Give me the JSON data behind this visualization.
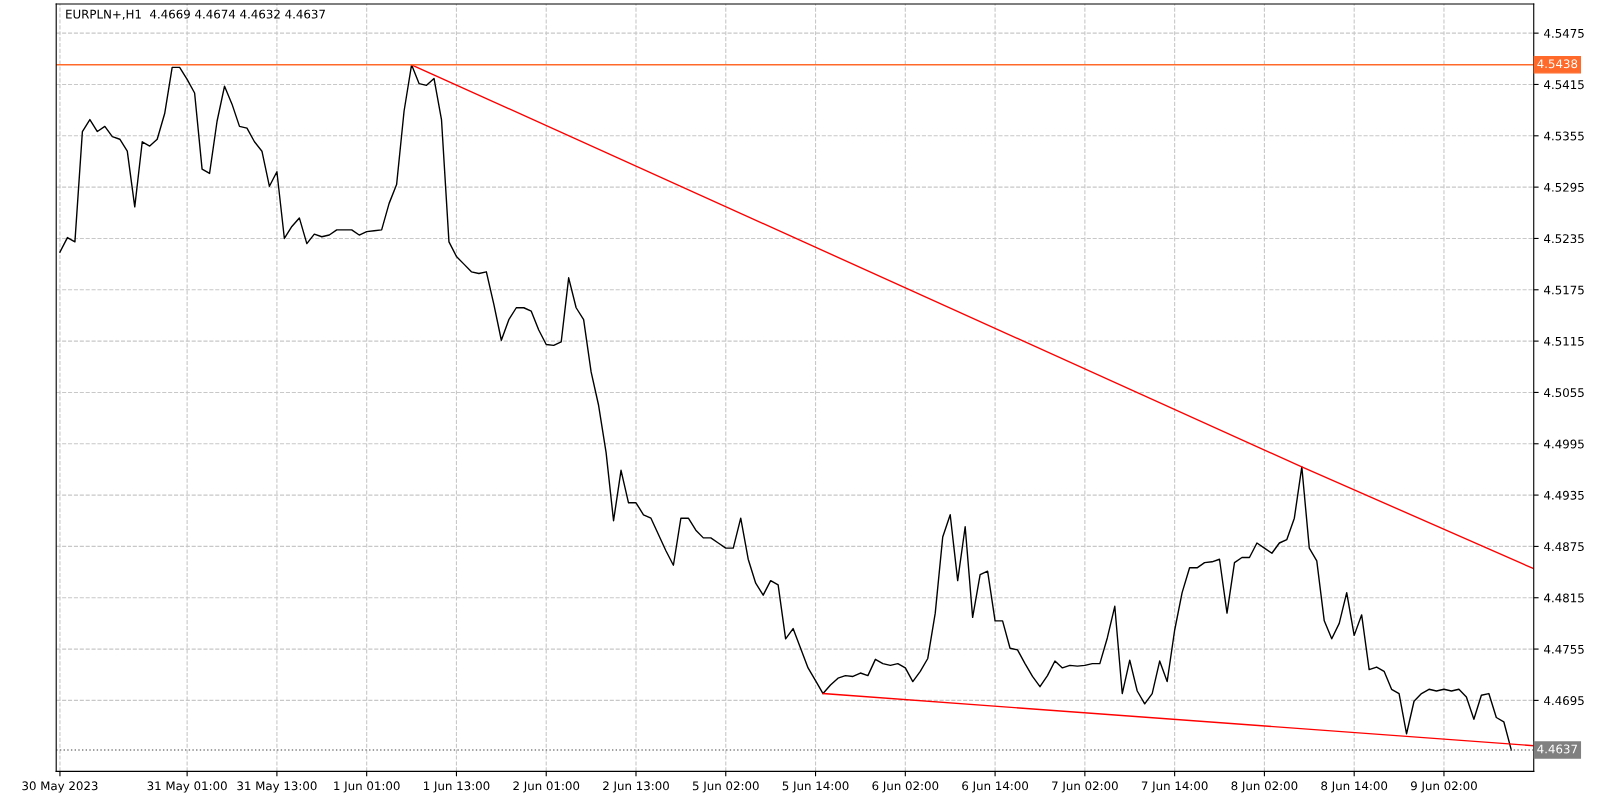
{
  "chart_data": {
    "type": "line",
    "title": "EURPLN+,H1  4.4669 4.4674 4.4632 4.4637",
    "categories": [
      "30 May 2023",
      null,
      null,
      null,
      null,
      null,
      null,
      null,
      null,
      null,
      null,
      null,
      null,
      null,
      null,
      null,
      null,
      "31 May 01:00",
      null,
      null,
      null,
      null,
      null,
      null,
      null,
      null,
      null,
      null,
      null,
      "31 May 13:00",
      null,
      null,
      null,
      null,
      null,
      null,
      null,
      null,
      null,
      null,
      null,
      "1 Jun 01:00",
      null,
      null,
      null,
      null,
      null,
      null,
      null,
      null,
      null,
      null,
      null,
      "1 Jun 13:00",
      null,
      null,
      null,
      null,
      null,
      null,
      null,
      null,
      null,
      null,
      null,
      "2 Jun 01:00",
      null,
      null,
      null,
      null,
      null,
      null,
      null,
      null,
      null,
      null,
      null,
      "2 Jun 13:00",
      null,
      null,
      null,
      null,
      null,
      null,
      null,
      null,
      null,
      null,
      null,
      "5 Jun 02:00",
      null,
      null,
      null,
      null,
      null,
      null,
      null,
      null,
      null,
      null,
      null,
      "5 Jun 14:00",
      null,
      null,
      null,
      null,
      null,
      null,
      null,
      null,
      null,
      null,
      null,
      "6 Jun 02:00",
      null,
      null,
      null,
      null,
      null,
      null,
      null,
      null,
      null,
      null,
      null,
      "6 Jun 14:00",
      null,
      null,
      null,
      null,
      null,
      null,
      null,
      null,
      null,
      null,
      null,
      "7 Jun 02:00",
      null,
      null,
      null,
      null,
      null,
      null,
      null,
      null,
      null,
      null,
      null,
      "7 Jun 14:00",
      null,
      null,
      null,
      null,
      null,
      null,
      null,
      null,
      null,
      null,
      null,
      "8 Jun 02:00",
      null,
      null,
      null,
      null,
      null,
      null,
      null,
      null,
      null,
      null,
      null,
      "8 Jun 14:00",
      null,
      null,
      null,
      null,
      null,
      null,
      null,
      null,
      null,
      null,
      null,
      "9 Jun 02:00",
      null,
      null,
      null,
      null,
      null,
      null,
      null,
      null,
      null,
      null,
      null,
      null
    ],
    "series": [
      {
        "color": "#000000",
        "values": [
          4.5219,
          4.5236,
          4.5231,
          4.536,
          4.5374,
          4.536,
          4.5366,
          4.5354,
          4.5351,
          4.5337,
          4.5272,
          4.5348,
          4.5343,
          4.5351,
          4.5381,
          4.5435,
          4.5435,
          4.5421,
          4.5405,
          4.5316,
          4.5311,
          4.5372,
          4.5413,
          4.5392,
          4.5366,
          4.5364,
          4.5348,
          4.5337,
          4.5296,
          4.5313,
          4.5235,
          4.5249,
          4.5259,
          4.5229,
          4.524,
          4.5237,
          4.5239,
          4.5245,
          4.5245,
          4.5245,
          4.5239,
          4.5243,
          4.5244,
          4.5245,
          4.5276,
          4.5298,
          4.5384,
          4.5438,
          4.5416,
          4.5414,
          4.5422,
          4.5374,
          4.5231,
          4.5214,
          4.5205,
          4.5196,
          4.5194,
          4.5196,
          4.5158,
          4.5116,
          4.514,
          4.5154,
          4.5154,
          4.515,
          4.5128,
          4.5111,
          4.511,
          4.5114,
          4.5189,
          4.5154,
          4.514,
          4.5079,
          4.504,
          4.4985,
          4.4905,
          4.4964,
          4.4926,
          4.4926,
          4.4912,
          4.4908,
          4.4889,
          4.487,
          4.4853,
          4.4908,
          4.4908,
          4.4894,
          4.4885,
          4.4885,
          4.4879,
          4.4873,
          4.4873,
          4.4908,
          4.486,
          4.4832,
          4.4818,
          4.4835,
          4.483,
          4.4767,
          4.4779,
          4.4756,
          4.4733,
          4.4718,
          4.4703,
          4.4713,
          4.4721,
          4.4724,
          4.4723,
          4.4727,
          4.4724,
          4.4743,
          4.4738,
          4.4736,
          4.4738,
          4.4733,
          4.4717,
          4.4729,
          4.4744,
          4.4797,
          4.4886,
          4.4912,
          4.4835,
          4.4898,
          4.4792,
          4.4842,
          4.4846,
          4.4788,
          4.4788,
          4.4756,
          4.4754,
          4.4738,
          4.4723,
          4.4711,
          4.4724,
          4.4741,
          4.4733,
          4.4736,
          4.4735,
          4.4736,
          4.4738,
          4.4738,
          4.4768,
          4.4805,
          4.4703,
          4.4742,
          4.4706,
          4.4691,
          4.4703,
          4.4741,
          4.4717,
          4.4777,
          4.4821,
          4.485,
          4.485,
          4.4856,
          4.4857,
          4.486,
          4.4797,
          4.4856,
          4.4862,
          4.4862,
          4.4879,
          4.4873,
          4.4867,
          4.4879,
          4.4883,
          4.4908,
          4.4968,
          4.4873,
          4.4858,
          4.4788,
          4.4767,
          4.4785,
          4.4821,
          4.4771,
          4.4795,
          4.4731,
          4.4734,
          4.4729,
          4.4708,
          4.4703,
          4.4656,
          4.4694,
          4.4703,
          4.4708,
          4.4706,
          4.4708,
          4.4706,
          4.4708,
          4.4699,
          4.4673,
          4.4701,
          4.4703,
          4.4675,
          4.467,
          4.4637,
          null,
          null,
          null
        ]
      },
      {
        "type": "line",
        "color": "#ff0000",
        "values": [
          null,
          null,
          null,
          null,
          null,
          null,
          null,
          null,
          null,
          null,
          null,
          null,
          null,
          null,
          null,
          null,
          null,
          null,
          null,
          null,
          null,
          null,
          null,
          null,
          null,
          null,
          null,
          null,
          null,
          null,
          null,
          null,
          null,
          null,
          null,
          null,
          null,
          null,
          null,
          null,
          null,
          null,
          null,
          null,
          null,
          null,
          null,
          4.5438,
          null,
          null,
          null,
          null,
          null,
          null,
          null,
          null,
          null,
          null,
          null,
          null,
          null,
          null,
          null,
          null,
          null,
          null,
          null,
          null,
          null,
          null,
          null,
          null,
          null,
          null,
          null,
          null,
          null,
          null,
          null,
          null,
          null,
          null,
          null,
          null,
          null,
          null,
          null,
          null,
          null,
          null,
          null,
          null,
          null,
          null,
          null,
          null,
          null,
          null,
          null,
          null,
          null,
          null,
          null,
          null,
          null,
          null,
          null,
          null,
          null,
          null,
          null,
          null,
          null,
          null,
          null,
          null,
          null,
          null,
          null,
          null,
          null,
          null,
          null,
          null,
          null,
          null,
          null,
          null,
          null,
          null,
          null,
          null,
          null,
          null,
          null,
          null,
          null,
          null,
          null,
          null,
          null,
          null,
          null,
          null,
          null,
          null,
          null,
          null,
          null,
          null,
          null,
          null,
          null,
          null,
          null,
          null,
          null,
          null,
          null,
          null,
          null,
          null,
          null,
          null,
          null,
          null,
          4.4968,
          null,
          null,
          null,
          null,
          null,
          null,
          null,
          null,
          null,
          null,
          null,
          null,
          null,
          null,
          null,
          null,
          null,
          null,
          null,
          null,
          null,
          null,
          null,
          null,
          null,
          null,
          null,
          null,
          null,
          null,
          4.4849
        ]
      },
      {
        "type": "line",
        "color": "#ff0000",
        "values": [
          null,
          null,
          null,
          null,
          null,
          null,
          null,
          null,
          null,
          null,
          null,
          null,
          null,
          null,
          null,
          null,
          null,
          null,
          null,
          null,
          null,
          null,
          null,
          null,
          null,
          null,
          null,
          null,
          null,
          null,
          null,
          null,
          null,
          null,
          null,
          null,
          null,
          null,
          null,
          null,
          null,
          null,
          null,
          null,
          null,
          null,
          null,
          null,
          null,
          null,
          null,
          null,
          null,
          null,
          null,
          null,
          null,
          null,
          null,
          null,
          null,
          null,
          null,
          null,
          null,
          null,
          null,
          null,
          null,
          null,
          null,
          null,
          null,
          null,
          null,
          null,
          null,
          null,
          null,
          null,
          null,
          null,
          null,
          null,
          null,
          null,
          null,
          null,
          null,
          null,
          null,
          null,
          null,
          null,
          null,
          null,
          null,
          null,
          null,
          null,
          null,
          null,
          4.4703,
          null,
          null,
          null,
          null,
          null,
          null,
          null,
          null,
          null,
          null,
          null,
          null,
          null,
          null,
          null,
          null,
          null,
          null,
          null,
          null,
          null,
          null,
          null,
          null,
          null,
          null,
          null,
          null,
          null,
          null,
          null,
          null,
          null,
          null,
          null,
          null,
          null,
          null,
          null,
          null,
          null,
          null,
          null,
          null,
          null,
          null,
          null,
          null,
          null,
          null,
          null,
          null,
          null,
          null,
          null,
          null,
          null,
          null,
          null,
          null,
          null,
          null,
          null,
          null,
          null,
          null,
          null,
          null,
          null,
          null,
          null,
          null,
          null,
          null,
          null,
          null,
          null,
          null,
          null,
          null,
          null,
          null,
          null,
          null,
          null,
          null,
          null,
          null,
          null,
          null,
          null,
          null,
          null,
          null,
          4.4642
        ]
      }
    ],
    "ylim": [
      4.4612,
      4.5509
    ],
    "yticks": [
      4.4695,
      4.4755,
      4.4815,
      4.4875,
      4.4935,
      4.4995,
      4.5055,
      4.5115,
      4.5175,
      4.5235,
      4.5295,
      4.5355,
      4.5415,
      4.5475
    ],
    "ref_lines": [
      {
        "axis": "y",
        "value": 4.5438,
        "label": "4.5438",
        "color": "#ff6a2a"
      },
      {
        "axis": "y",
        "value": 4.4637,
        "label": "4.4637",
        "color": "#808080",
        "line_style": "dotted"
      }
    ],
    "grid": true
  }
}
